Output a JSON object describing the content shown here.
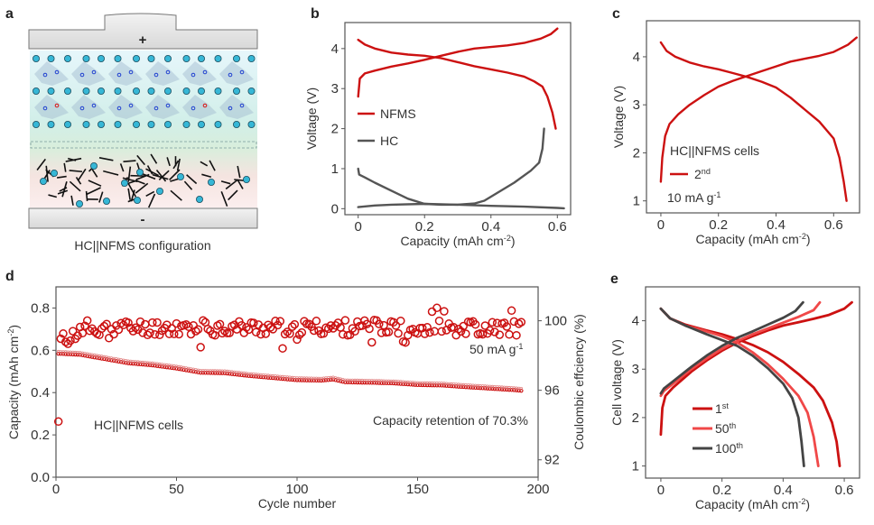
{
  "colors": {
    "red": "#cc1111",
    "light_red": "#f04848",
    "dark": "#444444",
    "axis": "#555555"
  },
  "panel_a": {
    "label": "a",
    "plus": "+",
    "minus": "-",
    "caption": "HC||NFMS configuration"
  },
  "chart_data": [
    {
      "panel": "b",
      "type": "line",
      "xlabel": "Capacity (mAh cm",
      "xlabel_sup": "-2",
      "xlabel_end": ")",
      "ylabel": "Voltage  (V)",
      "xlim": [
        -0.04,
        0.64
      ],
      "ylim": [
        -0.15,
        4.65
      ],
      "xticks": [
        "0",
        "0.2",
        "0.4",
        "0.6"
      ],
      "xtick_values": [
        0,
        0.2,
        0.4,
        0.6
      ],
      "yticks": [
        "0",
        "1",
        "2",
        "3",
        "4"
      ],
      "ytick_values": [
        0,
        1,
        2,
        3,
        4
      ],
      "legend": [
        {
          "name": "NFMS",
          "color": "#cc1111"
        },
        {
          "name": "HC",
          "color": "#555555"
        }
      ],
      "series": [
        {
          "name": "NFMS charge",
          "color": "#cc1111",
          "points": [
            [
              0,
              2.8
            ],
            [
              0.005,
              3.25
            ],
            [
              0.02,
              3.38
            ],
            [
              0.05,
              3.45
            ],
            [
              0.1,
              3.55
            ],
            [
              0.15,
              3.63
            ],
            [
              0.2,
              3.72
            ],
            [
              0.25,
              3.82
            ],
            [
              0.3,
              3.92
            ],
            [
              0.35,
              4.0
            ],
            [
              0.4,
              4.04
            ],
            [
              0.45,
              4.08
            ],
            [
              0.5,
              4.14
            ],
            [
              0.55,
              4.25
            ],
            [
              0.58,
              4.36
            ],
            [
              0.6,
              4.5
            ]
          ]
        },
        {
          "name": "NFMS discharge",
          "color": "#cc1111",
          "points": [
            [
              0,
              4.22
            ],
            [
              0.02,
              4.1
            ],
            [
              0.05,
              4.0
            ],
            [
              0.1,
              3.9
            ],
            [
              0.15,
              3.85
            ],
            [
              0.2,
              3.82
            ],
            [
              0.25,
              3.76
            ],
            [
              0.3,
              3.66
            ],
            [
              0.35,
              3.56
            ],
            [
              0.4,
              3.48
            ],
            [
              0.45,
              3.4
            ],
            [
              0.5,
              3.3
            ],
            [
              0.53,
              3.18
            ],
            [
              0.555,
              3.05
            ],
            [
              0.57,
              2.8
            ],
            [
              0.585,
              2.4
            ],
            [
              0.595,
              2.0
            ]
          ]
        },
        {
          "name": "HC discharge",
          "color": "#555555",
          "points": [
            [
              0,
              1.0
            ],
            [
              0.003,
              0.85
            ],
            [
              0.02,
              0.78
            ],
            [
              0.05,
              0.65
            ],
            [
              0.1,
              0.45
            ],
            [
              0.15,
              0.25
            ],
            [
              0.2,
              0.12
            ],
            [
              0.25,
              0.1
            ],
            [
              0.3,
              0.1
            ],
            [
              0.35,
              0.13
            ],
            [
              0.38,
              0.2
            ],
            [
              0.42,
              0.4
            ],
            [
              0.47,
              0.65
            ],
            [
              0.52,
              0.95
            ],
            [
              0.545,
              1.15
            ],
            [
              0.555,
              1.5
            ],
            [
              0.56,
              2.0
            ]
          ]
        },
        {
          "name": "HC charge",
          "color": "#555555",
          "points": [
            [
              0,
              0.04
            ],
            [
              0.05,
              0.08
            ],
            [
              0.1,
              0.1
            ],
            [
              0.2,
              0.12
            ],
            [
              0.3,
              0.1
            ],
            [
              0.4,
              0.07
            ],
            [
              0.5,
              0.05
            ],
            [
              0.6,
              0.02
            ],
            [
              0.62,
              0.01
            ]
          ]
        }
      ]
    },
    {
      "panel": "c",
      "type": "line",
      "xlabel": "Capacity (mAh cm",
      "xlabel_sup": "-2",
      "xlabel_end": ")",
      "ylabel": "Voltage  (V)",
      "xlim": [
        -0.05,
        0.69
      ],
      "ylim": [
        0.75,
        4.75
      ],
      "xticks": [
        "0",
        "0.2",
        "0.4",
        "0.6"
      ],
      "xtick_values": [
        0,
        0.2,
        0.4,
        0.6
      ],
      "yticks": [
        "1",
        "2",
        "3",
        "4"
      ],
      "ytick_values": [
        1,
        2,
        3,
        4
      ],
      "annotation": "HC||NFMS cells",
      "legend": [
        {
          "name": "2",
          "sup": "nd",
          "color": "#cc1111"
        }
      ],
      "rate_text": "10 mA g",
      "rate_sup": "-1",
      "series": [
        {
          "name": "2nd charge",
          "color": "#cc1111",
          "points": [
            [
              0,
              1.4
            ],
            [
              0.005,
              1.9
            ],
            [
              0.015,
              2.35
            ],
            [
              0.03,
              2.6
            ],
            [
              0.06,
              2.8
            ],
            [
              0.1,
              3.0
            ],
            [
              0.15,
              3.2
            ],
            [
              0.2,
              3.38
            ],
            [
              0.25,
              3.5
            ],
            [
              0.3,
              3.6
            ],
            [
              0.35,
              3.7
            ],
            [
              0.4,
              3.8
            ],
            [
              0.45,
              3.9
            ],
            [
              0.5,
              3.96
            ],
            [
              0.55,
              4.02
            ],
            [
              0.6,
              4.1
            ],
            [
              0.65,
              4.25
            ],
            [
              0.68,
              4.4
            ]
          ]
        },
        {
          "name": "2nd discharge",
          "color": "#cc1111",
          "points": [
            [
              0,
              4.3
            ],
            [
              0.02,
              4.12
            ],
            [
              0.05,
              4.0
            ],
            [
              0.1,
              3.88
            ],
            [
              0.15,
              3.8
            ],
            [
              0.2,
              3.74
            ],
            [
              0.25,
              3.66
            ],
            [
              0.3,
              3.58
            ],
            [
              0.35,
              3.48
            ],
            [
              0.4,
              3.36
            ],
            [
              0.45,
              3.15
            ],
            [
              0.5,
              2.9
            ],
            [
              0.55,
              2.65
            ],
            [
              0.6,
              2.3
            ],
            [
              0.62,
              1.9
            ],
            [
              0.635,
              1.4
            ],
            [
              0.645,
              1.0
            ]
          ]
        }
      ]
    },
    {
      "panel": "d",
      "type": "scatter",
      "xlabel": "Cycle number",
      "ylabel": "Capacity (mAh cm",
      "ylabel_sup": "-2",
      "ylabel_end": ")",
      "y2label": "Coulombic  effciency (%)",
      "xlim": [
        0,
        200
      ],
      "ylim": [
        0,
        0.9
      ],
      "y2lim": [
        91.0,
        101.95
      ],
      "xticks": [
        "0",
        "50",
        "100",
        "150",
        "200"
      ],
      "xtick_values": [
        0,
        50,
        100,
        150,
        200
      ],
      "yticks": [
        "0.0",
        "0.2",
        "0.4",
        "0.6",
        "0.8"
      ],
      "ytick_values": [
        0,
        0.2,
        0.4,
        0.6,
        0.8
      ],
      "y2ticks": [
        "92",
        "96",
        "100"
      ],
      "y2tick_values": [
        92,
        96,
        100
      ],
      "annotation_cells": "HC||NFMS cells",
      "annotation_retention": "Capacity retention of 70.3%",
      "rate_text": "50 mA g",
      "rate_sup": "-1",
      "cycles": 193,
      "capacity_trend": [
        [
          1,
          0.59
        ],
        [
          10,
          0.585
        ],
        [
          20,
          0.565
        ],
        [
          30,
          0.545
        ],
        [
          40,
          0.535
        ],
        [
          50,
          0.52
        ],
        [
          60,
          0.5
        ],
        [
          70,
          0.498
        ],
        [
          80,
          0.485
        ],
        [
          90,
          0.475
        ],
        [
          100,
          0.465
        ],
        [
          110,
          0.463
        ],
        [
          115,
          0.468
        ],
        [
          120,
          0.455
        ],
        [
          130,
          0.453
        ],
        [
          140,
          0.45
        ],
        [
          150,
          0.442
        ],
        [
          160,
          0.44
        ],
        [
          170,
          0.432
        ],
        [
          180,
          0.425
        ],
        [
          190,
          0.418
        ],
        [
          193,
          0.415
        ]
      ],
      "ce_first_cycle": 94.2,
      "ce_mean": 99.6,
      "ce_range": [
        98.3,
        100.8
      ]
    },
    {
      "panel": "e",
      "type": "line",
      "xlabel": "Capacity (mAh cm",
      "xlabel_sup": "-2",
      "xlabel_end": ")",
      "ylabel": "Cell voltage  (V)",
      "xlim": [
        -0.05,
        0.65
      ],
      "ylim": [
        0.75,
        4.7
      ],
      "xticks": [
        "0",
        "0.2",
        "0.4",
        "0.6"
      ],
      "xtick_values": [
        0,
        0.2,
        0.4,
        0.6
      ],
      "yticks": [
        "1",
        "2",
        "3",
        "4"
      ],
      "ytick_values": [
        1,
        2,
        3,
        4
      ],
      "legend": [
        {
          "name": "1",
          "sup": "st",
          "color": "#cc1111"
        },
        {
          "name": "50",
          "sup": "th",
          "color": "#f04848"
        },
        {
          "name": "100",
          "sup": "th",
          "color": "#444444"
        }
      ],
      "series": [
        {
          "name": "1st charge",
          "color": "#cc1111",
          "points": [
            [
              0,
              1.65
            ],
            [
              0.005,
              2.2
            ],
            [
              0.015,
              2.45
            ],
            [
              0.04,
              2.62
            ],
            [
              0.1,
              2.95
            ],
            [
              0.15,
              3.18
            ],
            [
              0.2,
              3.38
            ],
            [
              0.25,
              3.55
            ],
            [
              0.3,
              3.68
            ],
            [
              0.35,
              3.8
            ],
            [
              0.4,
              3.9
            ],
            [
              0.45,
              3.97
            ],
            [
              0.5,
              4.04
            ],
            [
              0.55,
              4.12
            ],
            [
              0.6,
              4.25
            ],
            [
              0.625,
              4.38
            ]
          ]
        },
        {
          "name": "1st discharge",
          "color": "#cc1111",
          "points": [
            [
              0,
              4.25
            ],
            [
              0.03,
              4.05
            ],
            [
              0.08,
              3.92
            ],
            [
              0.15,
              3.8
            ],
            [
              0.2,
              3.72
            ],
            [
              0.25,
              3.62
            ],
            [
              0.3,
              3.5
            ],
            [
              0.35,
              3.35
            ],
            [
              0.4,
              3.15
            ],
            [
              0.45,
              2.9
            ],
            [
              0.5,
              2.62
            ],
            [
              0.53,
              2.35
            ],
            [
              0.56,
              1.9
            ],
            [
              0.575,
              1.5
            ],
            [
              0.585,
              1.0
            ]
          ]
        },
        {
          "name": "50th charge",
          "color": "#f04848",
          "points": [
            [
              0,
              2.45
            ],
            [
              0.01,
              2.55
            ],
            [
              0.04,
              2.7
            ],
            [
              0.1,
              3.0
            ],
            [
              0.15,
              3.22
            ],
            [
              0.2,
              3.42
            ],
            [
              0.25,
              3.58
            ],
            [
              0.3,
              3.72
            ],
            [
              0.35,
              3.84
            ],
            [
              0.4,
              3.96
            ],
            [
              0.45,
              4.08
            ],
            [
              0.5,
              4.22
            ],
            [
              0.52,
              4.38
            ]
          ]
        },
        {
          "name": "50th discharge",
          "color": "#f04848",
          "points": [
            [
              0,
              4.25
            ],
            [
              0.03,
              4.05
            ],
            [
              0.08,
              3.9
            ],
            [
              0.15,
              3.78
            ],
            [
              0.2,
              3.68
            ],
            [
              0.25,
              3.55
            ],
            [
              0.3,
              3.35
            ],
            [
              0.35,
              3.1
            ],
            [
              0.4,
              2.8
            ],
            [
              0.45,
              2.45
            ],
            [
              0.48,
              2.1
            ],
            [
              0.5,
              1.6
            ],
            [
              0.515,
              1.0
            ]
          ]
        },
        {
          "name": "100th charge",
          "color": "#444444",
          "points": [
            [
              0,
              2.5
            ],
            [
              0.01,
              2.6
            ],
            [
              0.04,
              2.75
            ],
            [
              0.1,
              3.05
            ],
            [
              0.15,
              3.28
            ],
            [
              0.2,
              3.48
            ],
            [
              0.25,
              3.65
            ],
            [
              0.3,
              3.78
            ],
            [
              0.35,
              3.92
            ],
            [
              0.4,
              4.06
            ],
            [
              0.44,
              4.2
            ],
            [
              0.465,
              4.38
            ]
          ]
        },
        {
          "name": "100th discharge",
          "color": "#444444",
          "points": [
            [
              0,
              4.25
            ],
            [
              0.03,
              4.05
            ],
            [
              0.08,
              3.9
            ],
            [
              0.15,
              3.72
            ],
            [
              0.2,
              3.6
            ],
            [
              0.25,
              3.48
            ],
            [
              0.3,
              3.28
            ],
            [
              0.35,
              3.02
            ],
            [
              0.4,
              2.7
            ],
            [
              0.43,
              2.4
            ],
            [
              0.45,
              2.0
            ],
            [
              0.46,
              1.5
            ],
            [
              0.468,
              1.0
            ]
          ]
        }
      ]
    }
  ]
}
